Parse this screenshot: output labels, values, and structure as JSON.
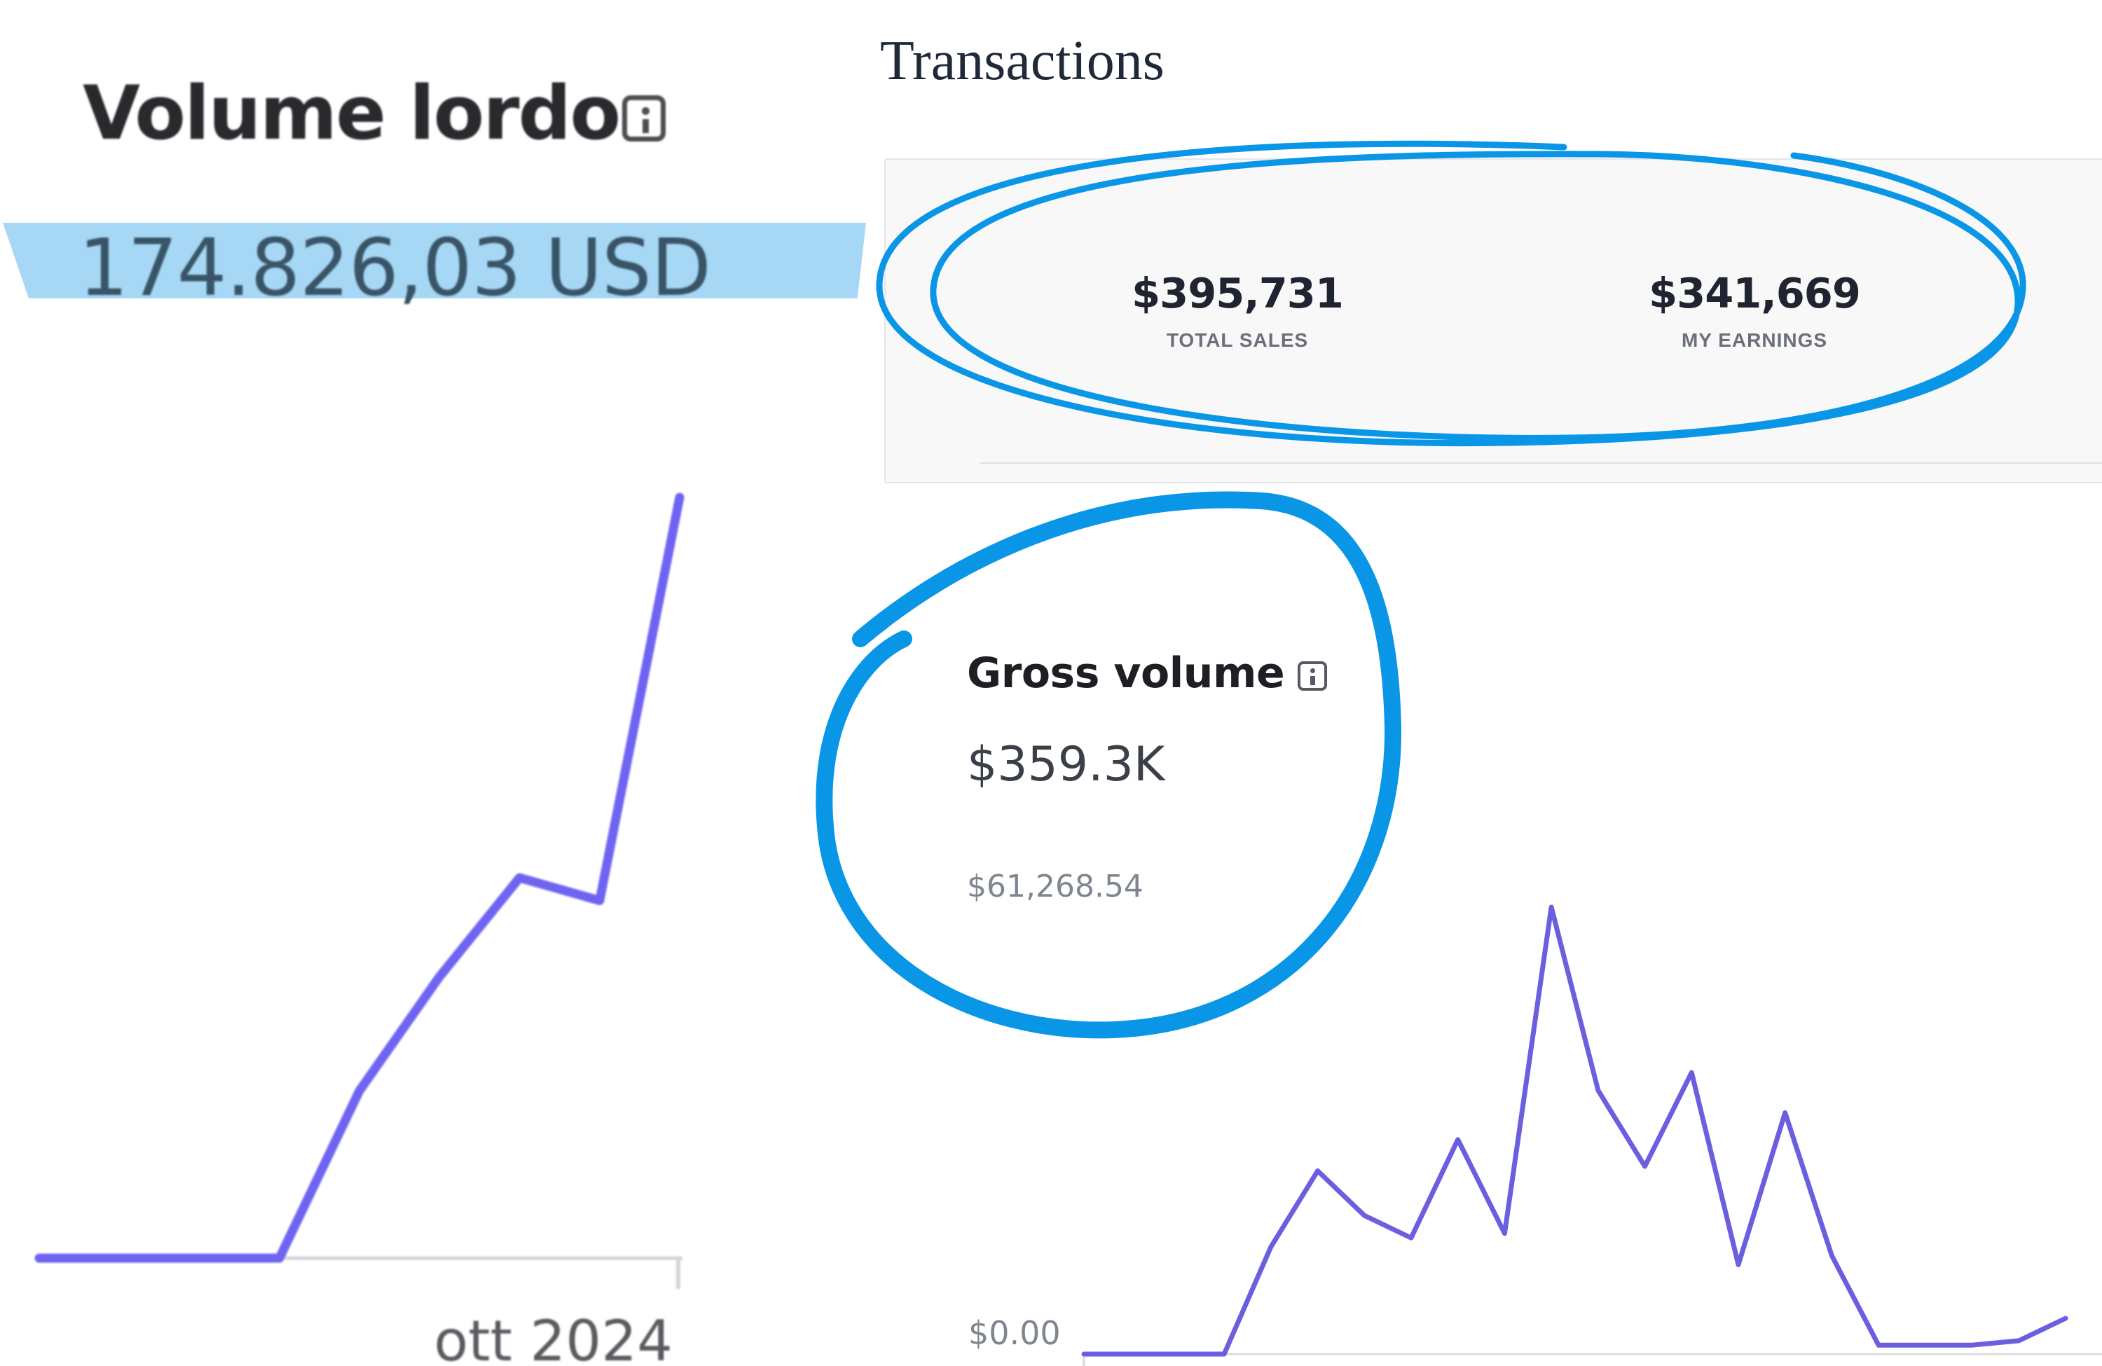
{
  "volume_lordo": {
    "title": "Volume lordo",
    "amount": "174.826,03 USD",
    "x_label": "ott 2024",
    "info_icon": "info-icon",
    "highlight_color": "#a6d8f6",
    "line_color": "#6f64f2"
  },
  "transactions": {
    "title": "Transactions",
    "total_sales": {
      "value": "$395,731",
      "label": "TOTAL SALES"
    },
    "my_earnings": {
      "value": "$341,669",
      "label": "MY EARNINGS"
    }
  },
  "gross_volume": {
    "title": "Gross volume",
    "value": "$359.3K",
    "previous": "$61,268.54",
    "axis_label": "$0.00",
    "info_icon": "info-icon",
    "line_color": "#6b5fe0"
  },
  "annotations": {
    "circle_color": "#0a96e6"
  },
  "chart_data": [
    {
      "type": "line",
      "title": "Volume lordo",
      "xlabel": "",
      "ylabel": "",
      "x_tick_labels": [
        "ott 2024"
      ],
      "series": [
        {
          "values": [
            0,
            0,
            0,
            0,
            22,
            37,
            50,
            47,
            100
          ]
        }
      ],
      "grid": false
    },
    {
      "type": "line",
      "title": "Gross volume",
      "xlabel": "",
      "ylabel": "",
      "y_tick_labels": [
        "$0.00"
      ],
      "series": [
        {
          "values": [
            0,
            0,
            0,
            0,
            24,
            41,
            31,
            26,
            48,
            27,
            100,
            59,
            42,
            63,
            20,
            54,
            22,
            2,
            2,
            2,
            3,
            8
          ]
        }
      ],
      "grid": false
    }
  ]
}
